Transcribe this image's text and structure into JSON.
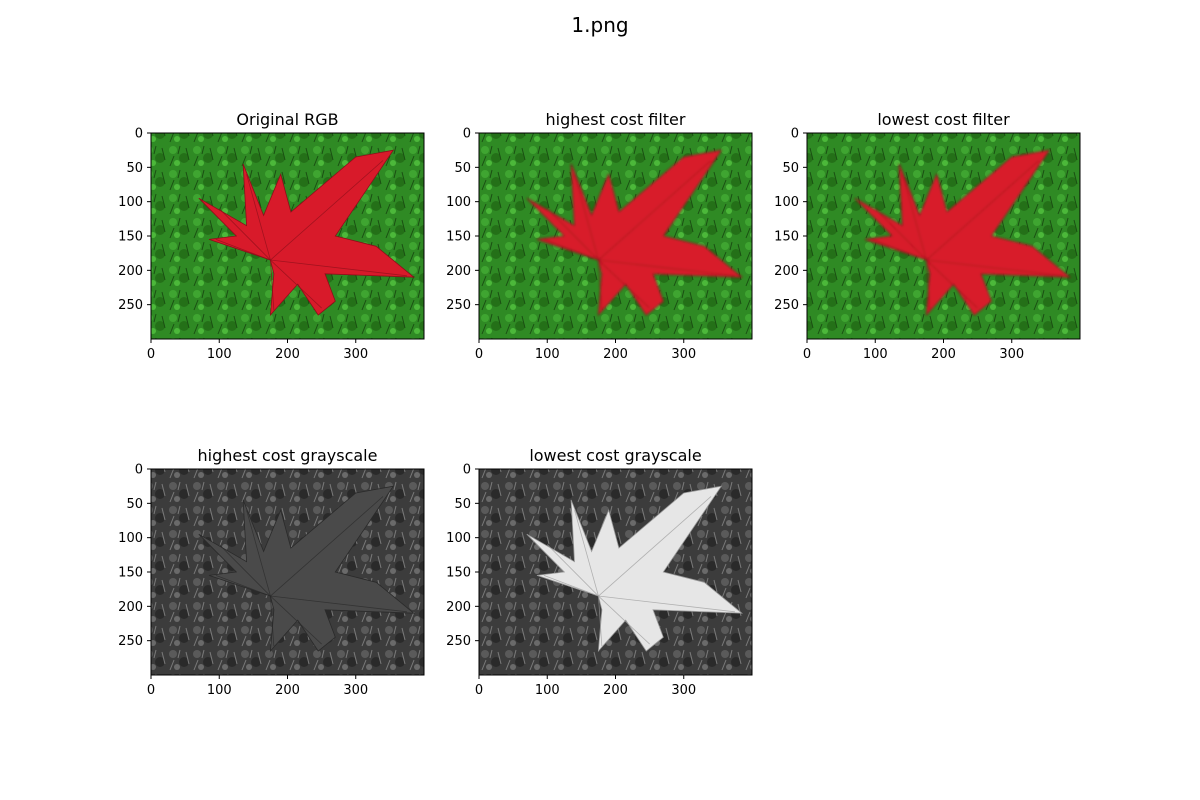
{
  "figure": {
    "title": "1.png"
  },
  "chart_data": [
    {
      "type": "image",
      "title": "Original RGB",
      "style": "rgb",
      "image_size": [
        400,
        300
      ],
      "xticks": [
        0,
        100,
        200,
        300
      ],
      "yticks": [
        0,
        50,
        100,
        150,
        200,
        250
      ],
      "xlim": [
        0,
        400
      ],
      "ylim": [
        300,
        0
      ]
    },
    {
      "type": "image",
      "title": "highest cost filter",
      "style": "rgb-blur",
      "image_size": [
        400,
        300
      ],
      "xticks": [
        0,
        100,
        200,
        300
      ],
      "yticks": [
        0,
        50,
        100,
        150,
        200,
        250
      ],
      "xlim": [
        0,
        400
      ],
      "ylim": [
        300,
        0
      ]
    },
    {
      "type": "image",
      "title": "lowest cost filter",
      "style": "rgb-blur",
      "image_size": [
        400,
        300
      ],
      "xticks": [
        0,
        100,
        200,
        300
      ],
      "yticks": [
        0,
        50,
        100,
        150,
        200,
        250
      ],
      "xlim": [
        0,
        400
      ],
      "ylim": [
        300,
        0
      ]
    },
    {
      "type": "image",
      "title": "highest cost grayscale",
      "style": "gray-dark-leaf",
      "image_size": [
        400,
        300
      ],
      "xticks": [
        0,
        100,
        200,
        300
      ],
      "yticks": [
        0,
        50,
        100,
        150,
        200,
        250
      ],
      "xlim": [
        0,
        400
      ],
      "ylim": [
        300,
        0
      ]
    },
    {
      "type": "image",
      "title": "lowest cost grayscale",
      "style": "gray-bright-leaf",
      "image_size": [
        400,
        300
      ],
      "xticks": [
        0,
        100,
        200,
        300
      ],
      "yticks": [
        0,
        50,
        100,
        150,
        200,
        250
      ],
      "xlim": [
        0,
        400
      ],
      "ylim": [
        300,
        0
      ]
    }
  ],
  "colors": {
    "grass": "#2f8a24",
    "grass_dark": "#1f5e18",
    "leaf": "#d81a2a",
    "leaf_vein": "#8c0f1a",
    "gray_bg": "#3c3c3c",
    "gray_leaf_dark": "#4a4a4a",
    "gray_leaf_bright": "#e6e6e6"
  }
}
